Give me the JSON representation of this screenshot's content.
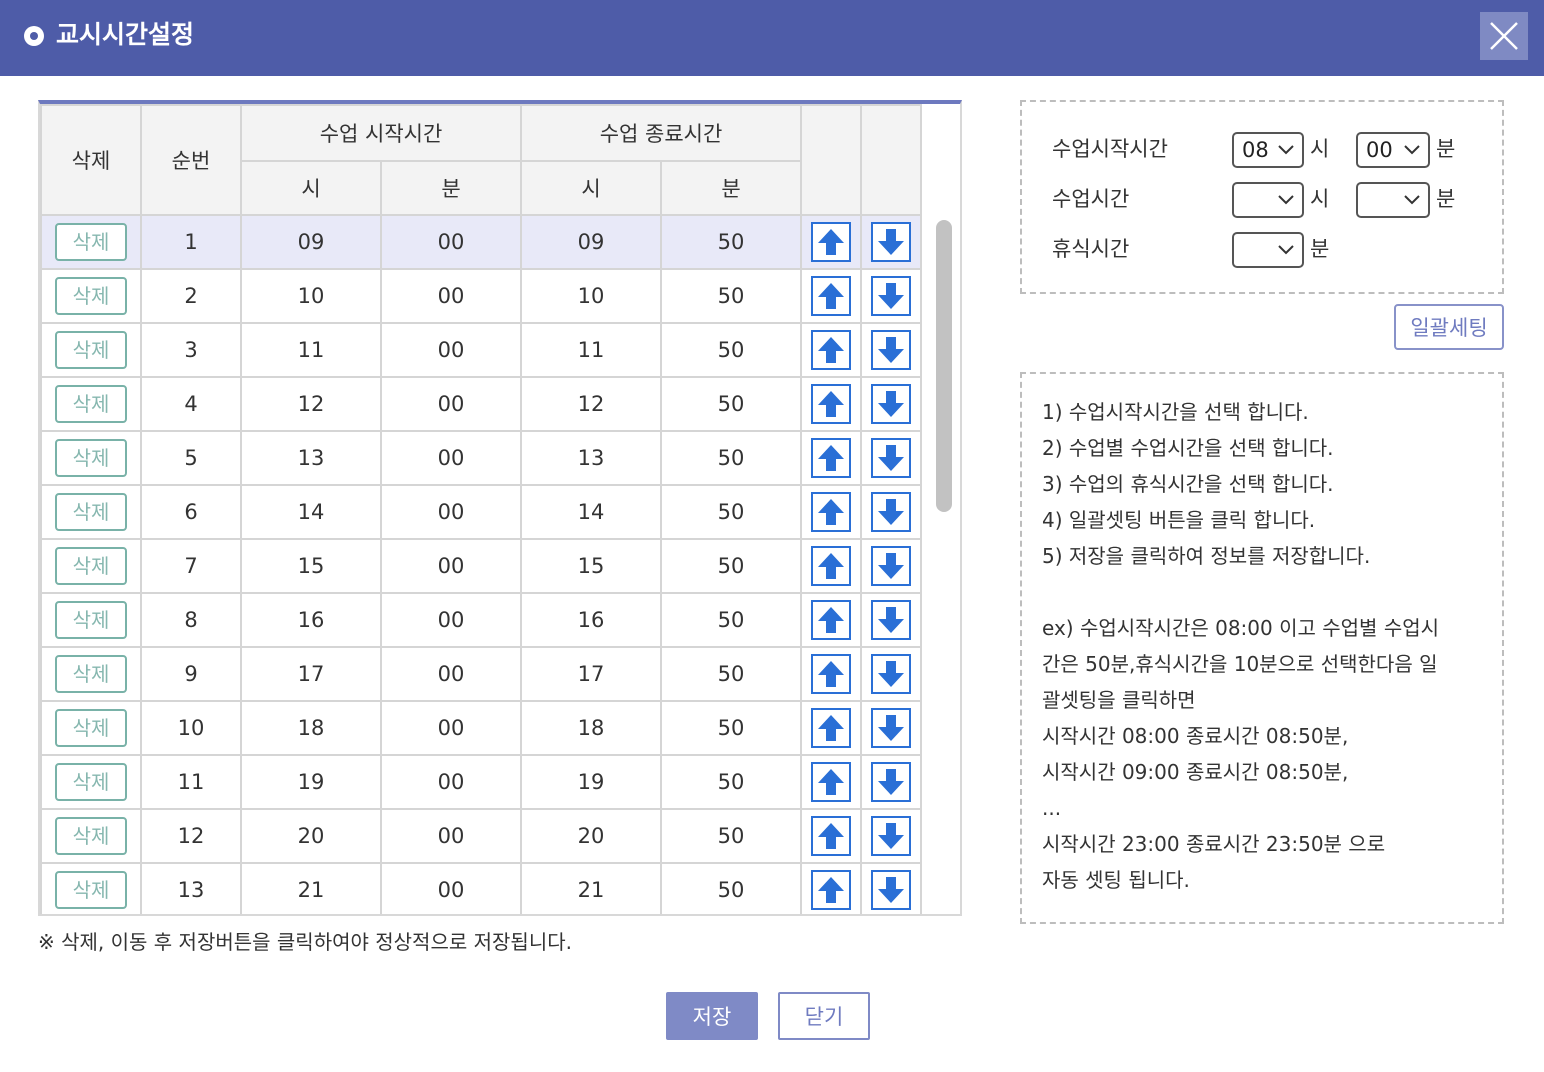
{
  "titlebar": {
    "title": "교시시간설정"
  },
  "table": {
    "headers": {
      "delete": "삭제",
      "order": "순번",
      "start_group": "수업 시작시간",
      "end_group": "수업 종료시간",
      "hour": "시",
      "minute": "분"
    },
    "rows": [
      {
        "delete_label": "삭제",
        "order": "1",
        "start_hour": "09",
        "start_min": "00",
        "end_hour": "09",
        "end_min": "50"
      },
      {
        "delete_label": "삭제",
        "order": "2",
        "start_hour": "10",
        "start_min": "00",
        "end_hour": "10",
        "end_min": "50"
      },
      {
        "delete_label": "삭제",
        "order": "3",
        "start_hour": "11",
        "start_min": "00",
        "end_hour": "11",
        "end_min": "50"
      },
      {
        "delete_label": "삭제",
        "order": "4",
        "start_hour": "12",
        "start_min": "00",
        "end_hour": "12",
        "end_min": "50"
      },
      {
        "delete_label": "삭제",
        "order": "5",
        "start_hour": "13",
        "start_min": "00",
        "end_hour": "13",
        "end_min": "50"
      },
      {
        "delete_label": "삭제",
        "order": "6",
        "start_hour": "14",
        "start_min": "00",
        "end_hour": "14",
        "end_min": "50"
      },
      {
        "delete_label": "삭제",
        "order": "7",
        "start_hour": "15",
        "start_min": "00",
        "end_hour": "15",
        "end_min": "50"
      },
      {
        "delete_label": "삭제",
        "order": "8",
        "start_hour": "16",
        "start_min": "00",
        "end_hour": "16",
        "end_min": "50"
      },
      {
        "delete_label": "삭제",
        "order": "9",
        "start_hour": "17",
        "start_min": "00",
        "end_hour": "17",
        "end_min": "50"
      },
      {
        "delete_label": "삭제",
        "order": "10",
        "start_hour": "18",
        "start_min": "00",
        "end_hour": "18",
        "end_min": "50"
      },
      {
        "delete_label": "삭제",
        "order": "11",
        "start_hour": "19",
        "start_min": "00",
        "end_hour": "19",
        "end_min": "50"
      },
      {
        "delete_label": "삭제",
        "order": "12",
        "start_hour": "20",
        "start_min": "00",
        "end_hour": "20",
        "end_min": "50"
      },
      {
        "delete_label": "삭제",
        "order": "13",
        "start_hour": "21",
        "start_min": "00",
        "end_hour": "21",
        "end_min": "50"
      }
    ],
    "selected_row_index": 0,
    "icons": {
      "move_up": "arrow-up-icon",
      "move_down": "arrow-down-icon"
    },
    "colors": {
      "arrow": "#2a6fd6",
      "selected_row": "#e8e9f8",
      "delete_border": "#79b2a8"
    }
  },
  "note": "※ 삭제, 이동 후 저장버튼을 클릭하여야 정상적으로 저장됩니다.",
  "footer": {
    "save_label": "저장",
    "close_label": "닫기"
  },
  "settings": {
    "start_time_label": "수업시작시간",
    "start_hour_value": "08",
    "start_min_value": "00",
    "class_time_label": "수업시간",
    "class_hour_value": "",
    "class_min_value": "",
    "break_time_label": "휴식시간",
    "break_min_value": "",
    "hour_unit": "시",
    "minute_unit": "분",
    "bulk_button_label": "일괄세팅"
  },
  "help": {
    "lines": [
      "1) 수업시작시간을 선택 합니다.",
      "2) 수업별 수업시간을 선택 합니다.",
      "3) 수업의 휴식시간을 선택 합니다.",
      "4) 일괄셋팅 버튼을 클릭 합니다.",
      "5) 저장을 클릭하여 정보를 저장합니다."
    ],
    "example_lines": [
      "ex) 수업시작시간은 08:00 이고 수업별 수업시",
      "간은 50분,휴식시간을 10분으로 선택한다음 일",
      "괄셋팅을 클릭하면",
      "시작시간 08:00 종료시간 08:50분,",
      "시작시간 09:00 종료시간 08:50분,",
      "...",
      "시작시간 23:00 종료시간 23:50분 으로",
      "자동 셋팅 됩니다."
    ]
  },
  "colors": {
    "titlebar": "#4e5ca8",
    "accent_button": "#7f8ac6",
    "table_top_border": "#6d79bf"
  }
}
